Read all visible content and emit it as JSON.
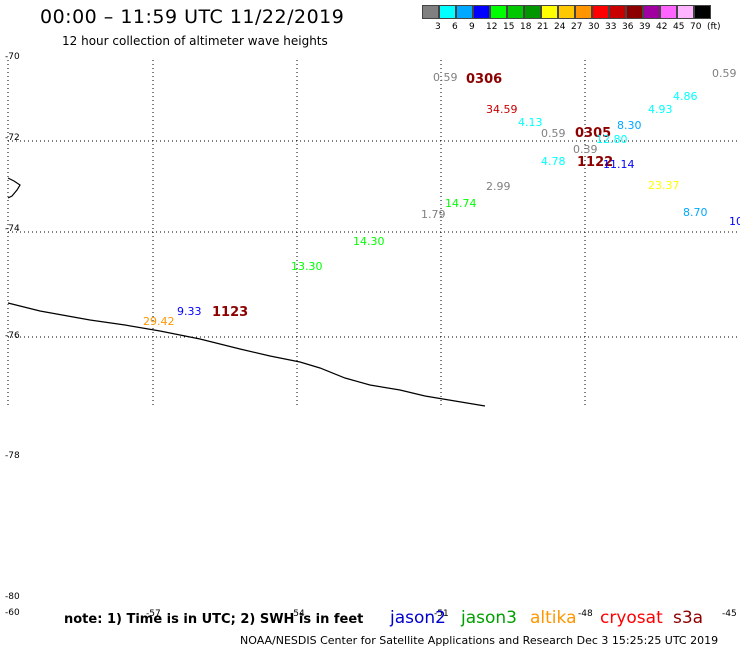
{
  "header": {
    "title": "00:00 – 11:59 UTC 11/22/2019",
    "subtitle": "12 hour collection of altimeter wave heights"
  },
  "legend": {
    "colors": [
      "#808080",
      "#00ffff",
      "#00a8ff",
      "#0000ff",
      "#00ff00",
      "#00c800",
      "#009600",
      "#ffff00",
      "#ffc800",
      "#ff9600",
      "#ff0000",
      "#c80000",
      "#8c0000",
      "#a000a0",
      "#ff64ff",
      "#ffb4ff",
      "#000000"
    ],
    "labels": [
      "3",
      "6",
      "9",
      "12",
      "15",
      "18",
      "21",
      "24",
      "27",
      "30",
      "33",
      "36",
      "39",
      "42",
      "45",
      "70",
      "(ft)"
    ]
  },
  "map": {
    "y_labels": [
      "-70",
      "-72",
      "-74",
      "-76",
      "-78",
      "-80",
      "-60"
    ],
    "x_labels": [
      "-57",
      "-54",
      "-51",
      "-48",
      "-45"
    ],
    "observations": [
      {
        "text": "0.59",
        "color": "#808080"
      },
      {
        "text": "0306",
        "color": "#8c0000"
      },
      {
        "text": "0.59",
        "color": "#808080"
      },
      {
        "text": "34.59",
        "color": "#c80000"
      },
      {
        "text": "4.86",
        "color": "#00ffff"
      },
      {
        "text": "4.93",
        "color": "#00ffff"
      },
      {
        "text": "4.13",
        "color": "#00ffff"
      },
      {
        "text": "8.30",
        "color": "#00a8ff"
      },
      {
        "text": "0.59",
        "color": "#808080"
      },
      {
        "text": "0305",
        "color": "#8c0000"
      },
      {
        "text": "12.80",
        "color": "#00ffff"
      },
      {
        "text": "0.39",
        "color": "#808080"
      },
      {
        "text": "4.78",
        "color": "#00ffff"
      },
      {
        "text": "1122",
        "color": "#8c0000"
      },
      {
        "text": "11.14",
        "color": "#0000ff"
      },
      {
        "text": "2.99",
        "color": "#808080"
      },
      {
        "text": "23.37",
        "color": "#ffff00"
      },
      {
        "text": "14.74",
        "color": "#00ff00"
      },
      {
        "text": "1.79",
        "color": "#808080"
      },
      {
        "text": "8.70",
        "color": "#00a8ff"
      },
      {
        "text": "10",
        "color": "#0000ff"
      },
      {
        "text": "14.30",
        "color": "#00ff00"
      },
      {
        "text": "13.30",
        "color": "#00ff00"
      },
      {
        "text": "29.42",
        "color": "#ff9600"
      },
      {
        "text": "9.33",
        "color": "#0000ff"
      },
      {
        "text": "1123",
        "color": "#8c0000"
      }
    ]
  },
  "footer": {
    "note": "note: 1) Time is in UTC; 2) SWH is in feet",
    "satellites": [
      {
        "name": "jason2",
        "color": "#0000cc"
      },
      {
        "name": "jason3",
        "color": "#00a000"
      },
      {
        "name": "altika",
        "color": "#ff9600"
      },
      {
        "name": "cryosat",
        "color": "#ff0000"
      },
      {
        "name": "s3a",
        "color": "#8c0000"
      }
    ],
    "credit": "NOAA/NESDIS Center for Satellite Applications and Research    Dec  3 15:25:25 UTC 2019"
  }
}
